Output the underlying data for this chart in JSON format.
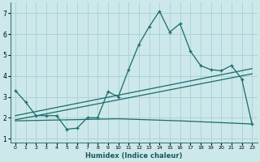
{
  "title": "",
  "xlabel": "Humidex (Indice chaleur)",
  "bg_color": "#cce8ea",
  "grid_color": "#aacfd2",
  "line_color": "#1a6b6b",
  "xlim": [
    -0.5,
    23.5
  ],
  "ylim": [
    0.8,
    7.5
  ],
  "xticks": [
    0,
    1,
    2,
    3,
    4,
    5,
    6,
    7,
    8,
    9,
    10,
    11,
    12,
    13,
    14,
    15,
    16,
    17,
    18,
    19,
    20,
    21,
    22,
    23
  ],
  "yticks": [
    1,
    2,
    3,
    4,
    5,
    6,
    7
  ],
  "line1_x": [
    0,
    1,
    2,
    3,
    4,
    5,
    6,
    7,
    8,
    9,
    10,
    11,
    12,
    13,
    14,
    15,
    16,
    17,
    18,
    19,
    20,
    21,
    22,
    23
  ],
  "line1_y": [
    3.3,
    2.75,
    2.1,
    2.1,
    2.1,
    1.45,
    1.5,
    2.0,
    2.0,
    3.25,
    3.0,
    4.3,
    5.5,
    6.35,
    7.1,
    6.1,
    6.5,
    5.2,
    4.5,
    4.3,
    4.25,
    4.5,
    3.85,
    1.7
  ],
  "line2_x": [
    0,
    23
  ],
  "line2_y": [
    2.1,
    4.35
  ],
  "line3_x": [
    0,
    23
  ],
  "line3_y": [
    1.9,
    4.1
  ],
  "line4_x": [
    0,
    10,
    16,
    23
  ],
  "line4_y": [
    1.85,
    1.95,
    1.85,
    1.7
  ]
}
